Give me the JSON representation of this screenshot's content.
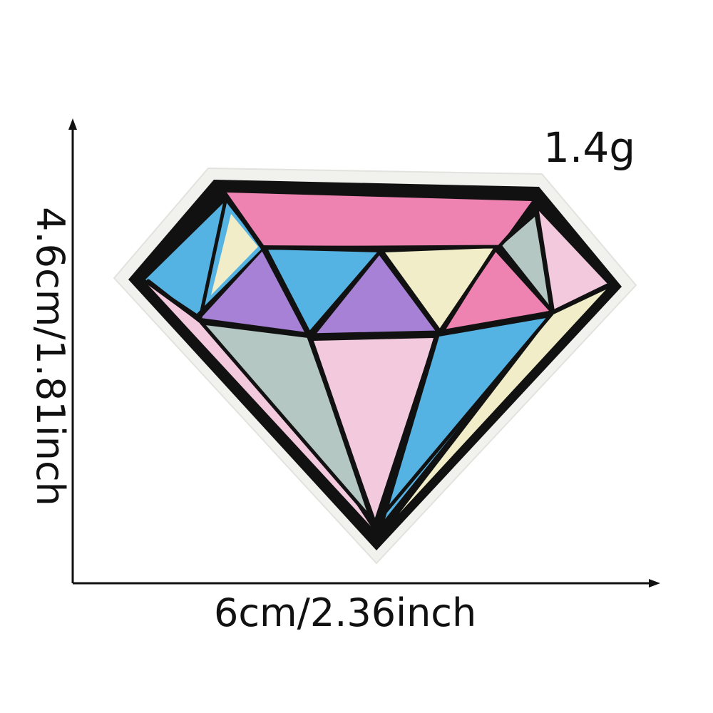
{
  "product": {
    "weight_label": "1.4g",
    "width_label": "6cm/2.36inch",
    "height_label": "4.6cm/1.81inch"
  },
  "colors": {
    "background": "#ffffff",
    "outline": "#111111",
    "felt_border": "#f1f1ee",
    "pink": "#ee82b0",
    "light_pink": "#f3c9de",
    "blue": "#55b3e3",
    "purple": "#a781d6",
    "cream": "#f1edc8",
    "gray": "#b5c7c3"
  },
  "icons": {
    "patch": "diamond-patch-icon",
    "arrows": "dimension-arrow-icon"
  }
}
